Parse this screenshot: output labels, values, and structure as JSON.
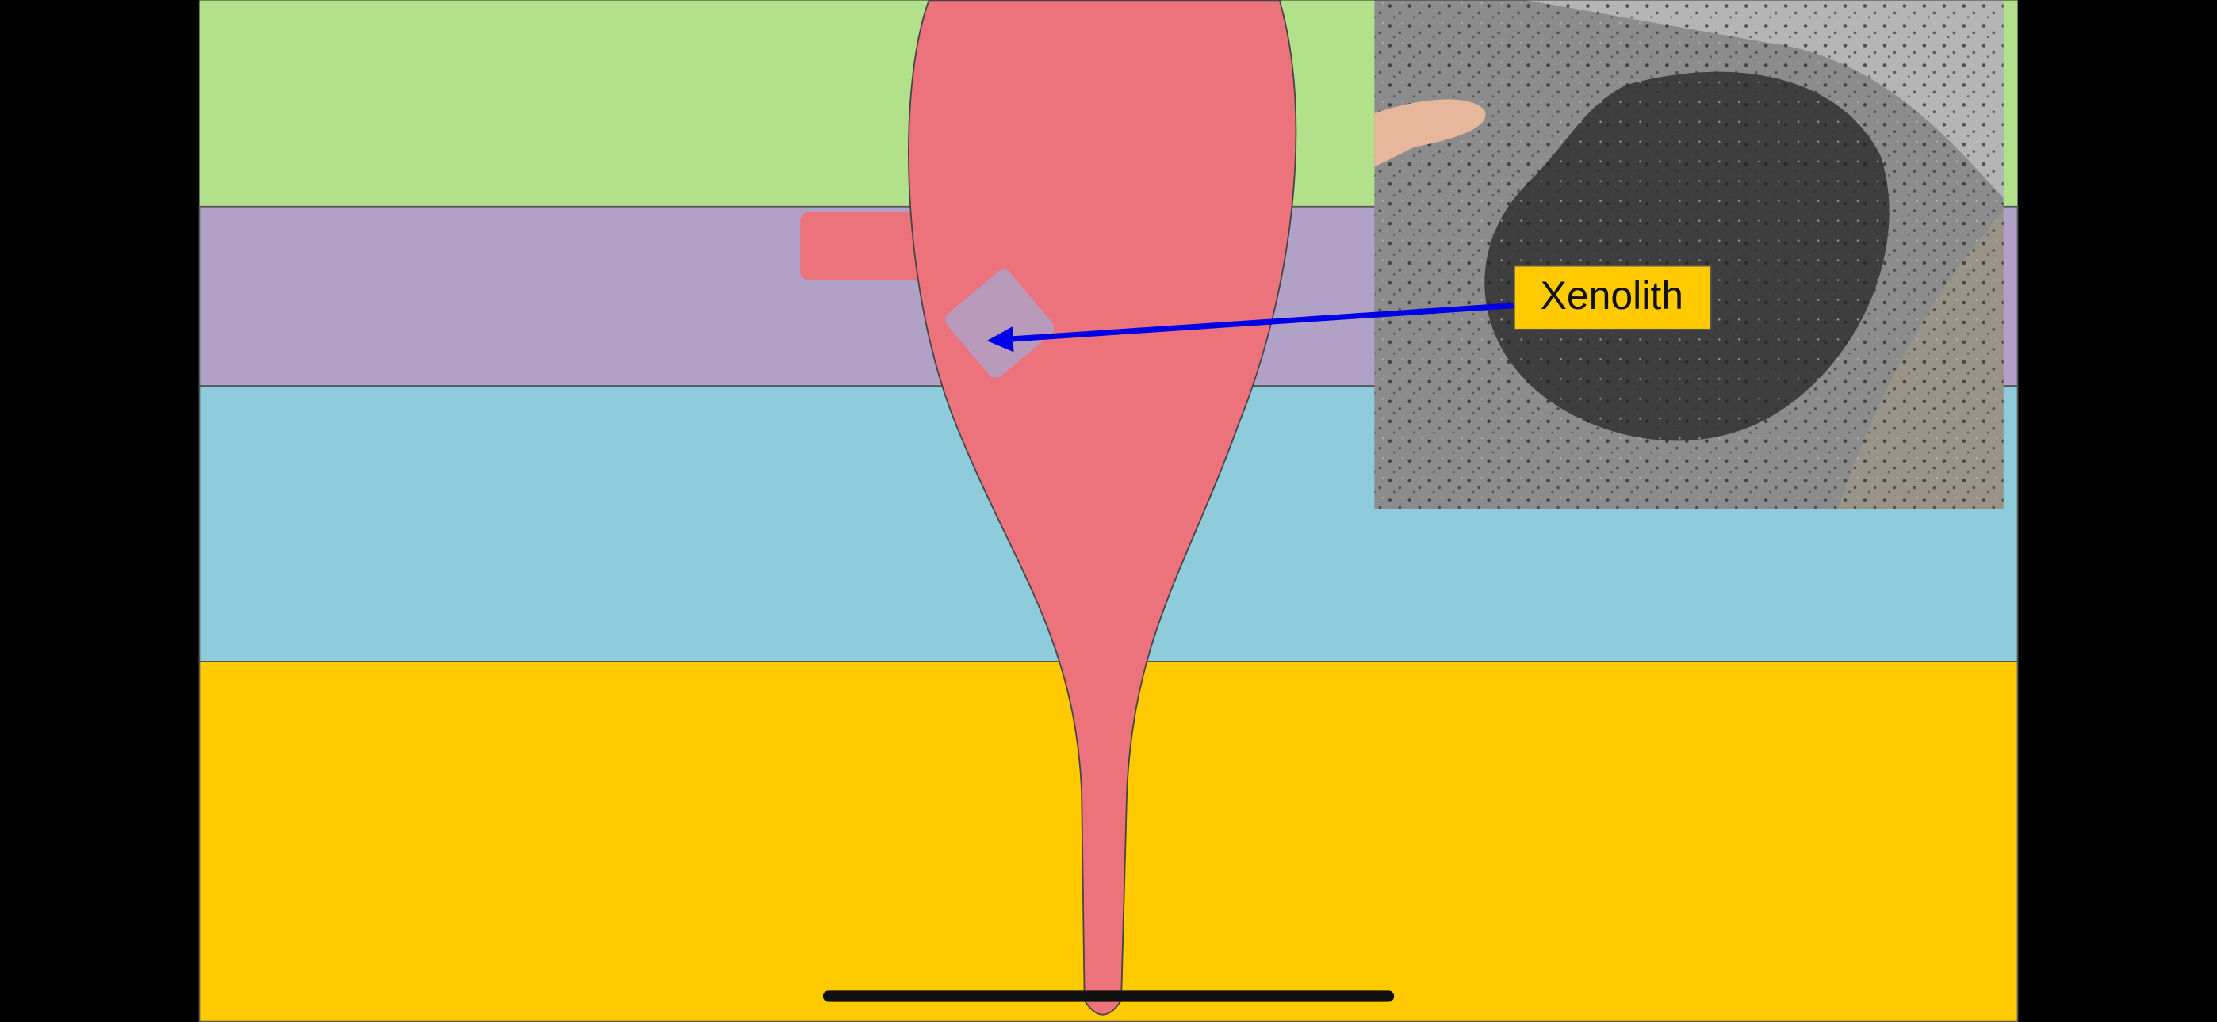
{
  "label": {
    "text": "Xenolith"
  }
}
